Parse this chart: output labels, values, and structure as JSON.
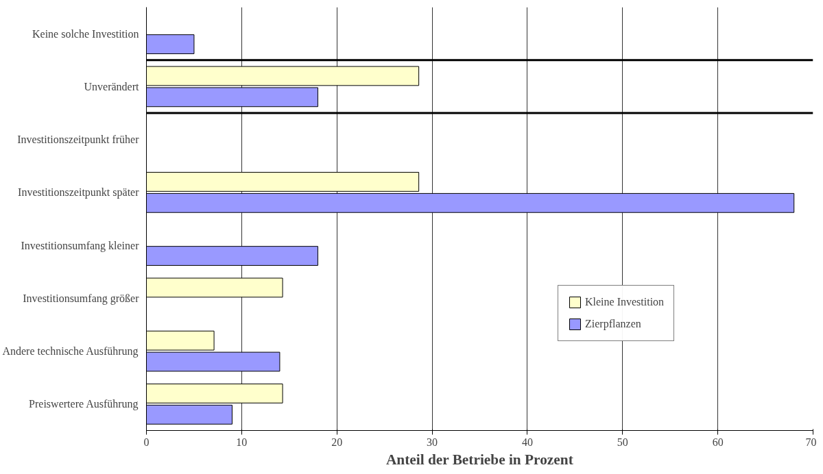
{
  "chart_data": {
    "type": "bar",
    "orientation": "horizontal",
    "xlabel": "Anteil der Betriebe in Prozent",
    "categories": [
      "Keine solche Investition",
      "Unverändert",
      "Investitionszeitpunkt früher",
      "Investitionszeitpunkt später",
      "Investitionsumfang kleiner",
      "Investitionsumfang größer",
      "Andere technische Ausführung",
      "Preiswertere Ausführung"
    ],
    "series": [
      {
        "name": "Kleine Investition",
        "color": "#ffffcc",
        "values": [
          null,
          28.6,
          null,
          28.6,
          null,
          14.3,
          7.1,
          14.3
        ]
      },
      {
        "name": "Zierpflanzen",
        "color": "#9999ff",
        "values": [
          5,
          18,
          null,
          68,
          18,
          null,
          14,
          9
        ]
      }
    ],
    "xlim": [
      0,
      70
    ],
    "xticks": [
      0,
      10,
      20,
      30,
      40,
      50,
      60,
      70
    ],
    "grid": "x",
    "legend": "right"
  }
}
